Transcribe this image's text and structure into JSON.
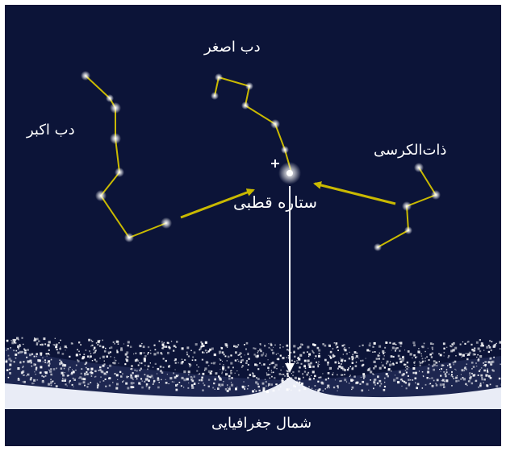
{
  "labels": {
    "little_dipper": "دب اصغر",
    "big_dipper": "دب اکبر",
    "cassiopeia": "ذات‌الکرسی",
    "polaris": "ستاره قطبی",
    "geographic_north": "شمال جغرافیایی"
  },
  "colors": {
    "sky": "#0c1438",
    "constellation_line": "#c9b900",
    "pointer_arrow": "#c9b900",
    "north_line": "#ffffff",
    "star": "#ffffff"
  },
  "icons": {
    "polaris_marker": "plus-icon"
  }
}
